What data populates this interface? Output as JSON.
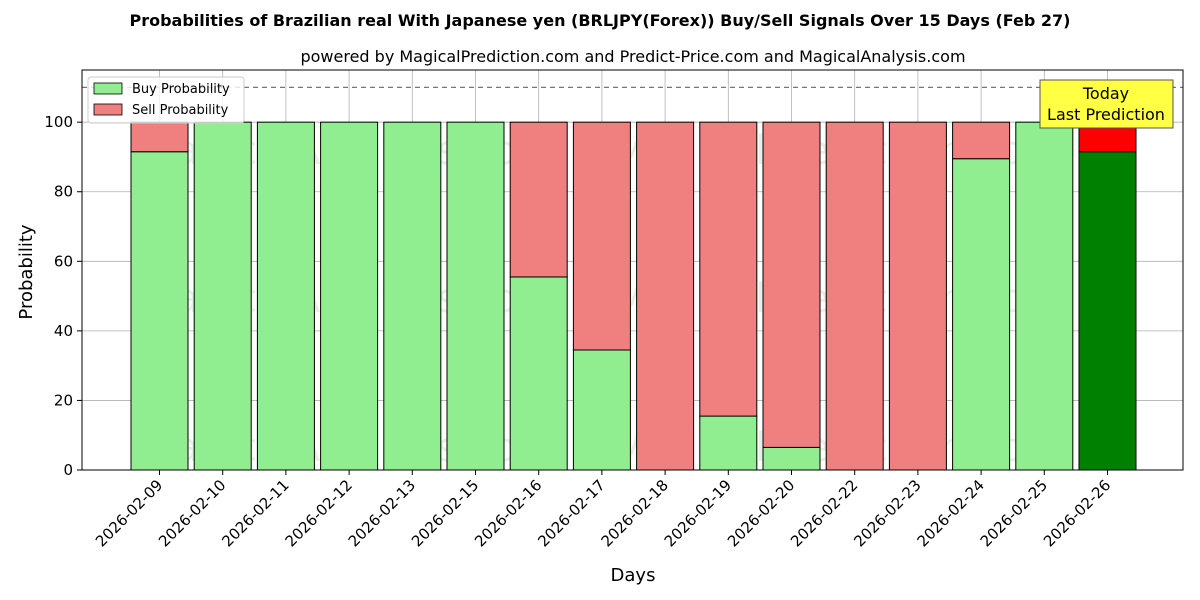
{
  "chart_data": {
    "type": "bar",
    "stacked": true,
    "title": "Probabilities of Brazilian real With Japanese yen (BRLJPY(Forex)) Buy/Sell Signals Over 15 Days (Feb 27)",
    "subtitle": "powered by MagicalPrediction.com and Predict-Price.com and MagicalAnalysis.com",
    "xlabel": "Days",
    "ylabel": "Probability",
    "ylim": [
      0,
      115
    ],
    "yticks": [
      0,
      20,
      40,
      60,
      80,
      100
    ],
    "reference_line": 110,
    "grid": true,
    "legend_position": "top-left",
    "categories": [
      "2026-02-09",
      "2026-02-10",
      "2026-02-11",
      "2026-02-12",
      "2026-02-13",
      "2026-02-15",
      "2026-02-16",
      "2026-02-17",
      "2026-02-18",
      "2026-02-19",
      "2026-02-20",
      "2026-02-22",
      "2026-02-23",
      "2026-02-24",
      "2026-02-25",
      "2026-02-26"
    ],
    "series": [
      {
        "name": "Buy Probability",
        "color": "#90ee90",
        "highlight_color": "#008000",
        "values": [
          91.5,
          100,
          100,
          100,
          100,
          100,
          55.5,
          34.5,
          0,
          15.5,
          6.5,
          0,
          0,
          89.5,
          100,
          91.5
        ]
      },
      {
        "name": "Sell Probability",
        "color": "#f08080",
        "highlight_color": "#ff0000",
        "values": [
          8.5,
          0,
          0,
          0,
          0,
          0,
          44.5,
          65.5,
          100,
          84.5,
          93.5,
          100,
          100,
          10.5,
          0,
          8.5
        ]
      }
    ],
    "highlight_index": 15,
    "annotation": {
      "line1": "Today",
      "line2": "Last Prediction",
      "color": "#ffff44"
    },
    "watermarks": [
      "MagicalAnalysis.com",
      "MagicalPrediction.com"
    ]
  }
}
